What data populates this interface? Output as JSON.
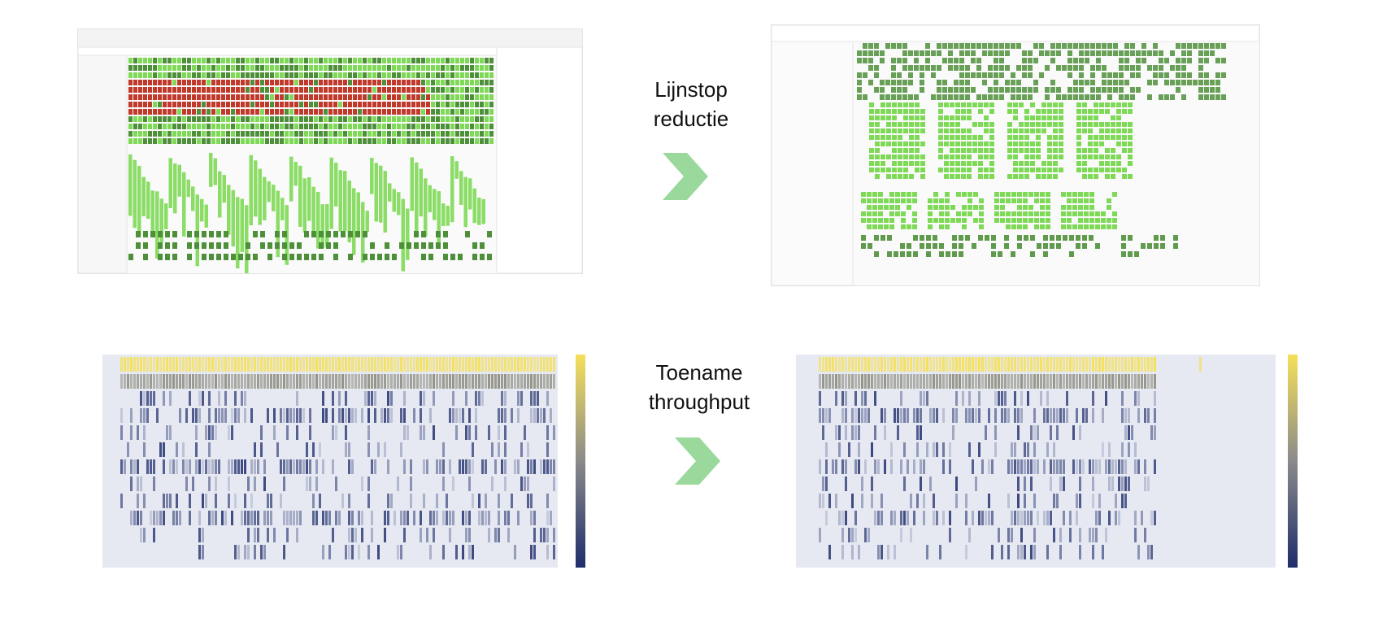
{
  "captions": {
    "top": [
      "Lijnstop",
      "reductie"
    ],
    "bottom": [
      "Toename",
      "throughput"
    ]
  },
  "colors": {
    "arrow": "#9bd89c",
    "gantt_red": "#c0392b",
    "gantt_green": "#7ed957",
    "gantt_green_dark": "#4e8f3a",
    "heat_yellow": "#f5e05a",
    "heat_blue": "#1f2d6b",
    "heat_bg": "#e6e9f2"
  },
  "icons": {
    "arrow": "chevron-right-icon"
  }
}
